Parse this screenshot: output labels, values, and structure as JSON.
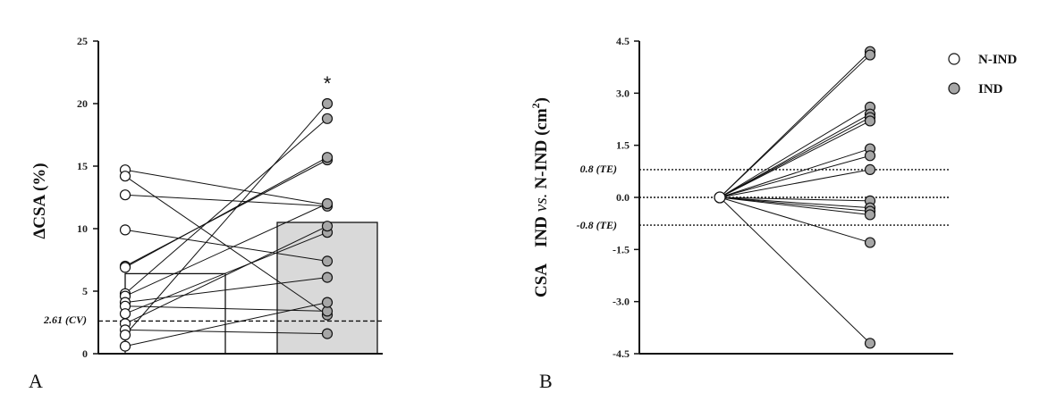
{
  "chart_data": [
    {
      "type": "bar",
      "panel_label": "A",
      "ylabel": "ΔCSA (%)",
      "ylim": [
        0,
        25
      ],
      "yticks": [
        "0",
        "5",
        "10",
        "15",
        "20",
        "25"
      ],
      "categories": [
        "N-IND",
        "IND"
      ],
      "bar_values": [
        6.4,
        10.5
      ],
      "bar_colors": [
        "#ffffff",
        "#d9d9d9"
      ],
      "significance_marker": "*",
      "reference_line": {
        "value": 2.61,
        "label": "2.61 (CV)",
        "style": "dashed"
      },
      "paired_points": [
        [
          14.7,
          11.9
        ],
        [
          14.2,
          3.1
        ],
        [
          12.7,
          11.8
        ],
        [
          9.9,
          7.4
        ],
        [
          7.0,
          15.5
        ],
        [
          6.9,
          15.7
        ],
        [
          4.8,
          18.8
        ],
        [
          4.6,
          12.0
        ],
        [
          4.1,
          6.1
        ],
        [
          3.8,
          3.4
        ],
        [
          3.2,
          9.7
        ],
        [
          2.4,
          10.2
        ],
        [
          1.9,
          1.6
        ],
        [
          1.5,
          20.0
        ],
        [
          0.6,
          4.1
        ]
      ]
    },
    {
      "type": "scatter",
      "panel_label": "B",
      "ylabel_parts": [
        "CSA",
        "IND",
        "vs.",
        "N-IND (cm",
        "2",
        ")"
      ],
      "ylim": [
        -4.5,
        4.5
      ],
      "yticks": [
        "4.5",
        "3.0",
        "1.5",
        "0.0",
        "-1.5",
        "-3.0",
        "-4.5"
      ],
      "reference_lines": [
        {
          "value": 0.8,
          "label": "0.8 (TE)",
          "style": "dotted"
        },
        {
          "value": 0.0,
          "label": "",
          "style": "dotted"
        },
        {
          "value": -0.8,
          "label": "-0.8 (TE)",
          "style": "dotted"
        }
      ],
      "origin_point": 0.0,
      "ind_values": [
        4.2,
        4.1,
        2.6,
        2.4,
        2.3,
        2.2,
        1.4,
        1.2,
        0.8,
        -0.1,
        -0.3,
        -0.4,
        -0.5,
        -1.3,
        -4.2
      ],
      "legend": [
        {
          "label": "N-IND",
          "fill": "#ffffff"
        },
        {
          "label": "IND",
          "fill": "#a6a6a6"
        }
      ]
    }
  ]
}
